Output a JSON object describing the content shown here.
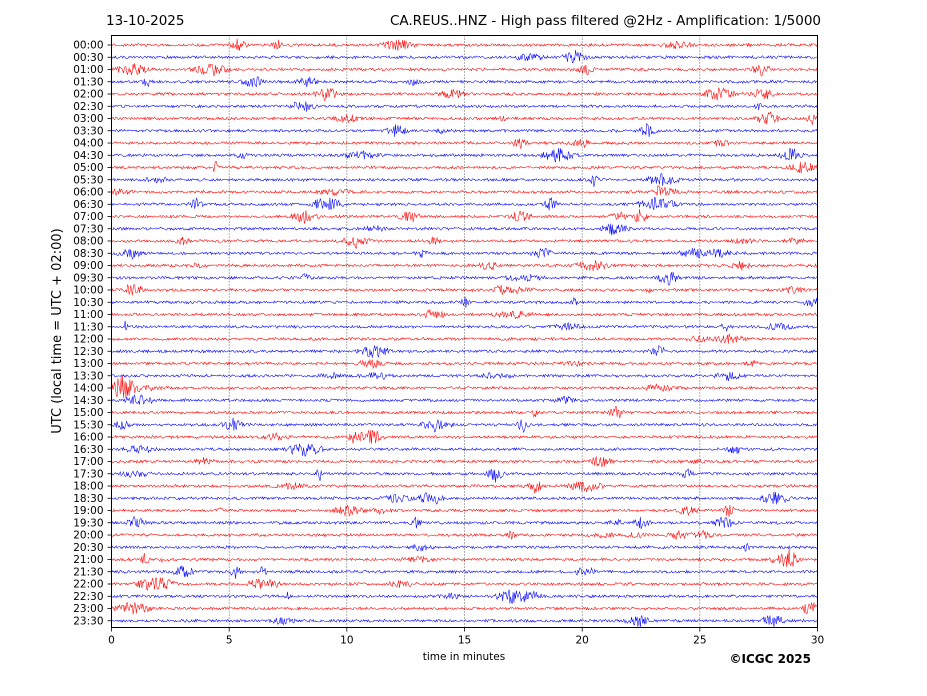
{
  "chart_data": {
    "type": "line",
    "title_left": "13-10-2025",
    "title_right": "CA.REUS..HNZ - High pass filtered @2Hz - Amplification: 1/5000",
    "xlabel": "time in minutes",
    "ylabel": "UTC (local time = UTC + 02:00)",
    "xlim": [
      0,
      30
    ],
    "x_ticks": [
      0,
      5,
      10,
      15,
      20,
      25,
      30
    ],
    "x_tick_labels": [
      "0",
      "5",
      "10",
      "15",
      "20",
      "25",
      "30"
    ],
    "grid": "vertical dotted lines at x ticks",
    "rows": [
      "00:00",
      "00:30",
      "01:00",
      "01:30",
      "02:00",
      "02:30",
      "03:00",
      "03:30",
      "04:00",
      "04:30",
      "05:00",
      "05:30",
      "06:00",
      "06:30",
      "07:00",
      "07:30",
      "08:00",
      "08:30",
      "09:00",
      "09:30",
      "10:00",
      "10:30",
      "11:00",
      "11:30",
      "12:00",
      "12:30",
      "13:00",
      "13:30",
      "14:00",
      "14:30",
      "15:00",
      "15:30",
      "16:00",
      "16:30",
      "17:00",
      "17:30",
      "18:00",
      "18:30",
      "19:00",
      "19:30",
      "20:00",
      "20:30",
      "21:00",
      "21:30",
      "22:00",
      "22:30",
      "23:00",
      "23:30"
    ],
    "colors": [
      "#ff0000",
      "#0000ff"
    ],
    "copyright": "©ICGC 2025"
  }
}
